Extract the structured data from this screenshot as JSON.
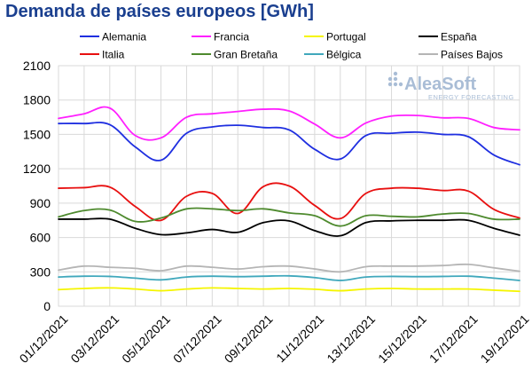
{
  "chart_data": {
    "type": "line",
    "title": "Demanda de países europeos [GWh]",
    "xlabel": "",
    "ylabel": "",
    "ylim": [
      0,
      2100
    ],
    "yticks": [
      0,
      300,
      600,
      900,
      1200,
      1500,
      1800,
      2100
    ],
    "x": [
      "01/12/2021",
      "02/12/2021",
      "03/12/2021",
      "04/12/2021",
      "05/12/2021",
      "06/12/2021",
      "07/12/2021",
      "08/12/2021",
      "09/12/2021",
      "10/12/2021",
      "11/12/2021",
      "12/12/2021",
      "13/12/2021",
      "14/12/2021",
      "15/12/2021",
      "16/12/2021",
      "17/12/2021",
      "18/12/2021",
      "19/12/2021"
    ],
    "xtick_labels": [
      "01/12/2021",
      "03/12/2021",
      "05/12/2021",
      "07/12/2021",
      "09/12/2021",
      "11/12/2021",
      "13/12/2021",
      "15/12/2021",
      "17/12/2021",
      "19/12/2021"
    ],
    "grid": true,
    "legend_position": "top",
    "series": [
      {
        "name": "Alemania",
        "color": "#1f2fe0",
        "values": [
          1595,
          1595,
          1585,
          1390,
          1275,
          1510,
          1565,
          1580,
          1560,
          1540,
          1370,
          1285,
          1490,
          1510,
          1520,
          1500,
          1480,
          1320,
          1235
        ]
      },
      {
        "name": "Francia",
        "color": "#ff1fff",
        "values": [
          1640,
          1680,
          1730,
          1490,
          1470,
          1650,
          1680,
          1700,
          1720,
          1705,
          1590,
          1470,
          1600,
          1660,
          1665,
          1645,
          1640,
          1560,
          1540
        ]
      },
      {
        "name": "Portugal",
        "color": "#f5f500",
        "values": [
          145,
          155,
          160,
          150,
          135,
          150,
          160,
          155,
          150,
          155,
          148,
          135,
          150,
          155,
          150,
          150,
          150,
          140,
          130
        ]
      },
      {
        "name": "España",
        "color": "#000000",
        "values": [
          760,
          760,
          760,
          680,
          625,
          640,
          670,
          645,
          730,
          745,
          660,
          615,
          730,
          745,
          750,
          750,
          750,
          680,
          620
        ]
      },
      {
        "name": "Italia",
        "color": "#e81010",
        "values": [
          1030,
          1035,
          1040,
          870,
          750,
          960,
          985,
          810,
          1045,
          1050,
          880,
          765,
          985,
          1030,
          1030,
          1010,
          1005,
          845,
          770
        ]
      },
      {
        "name": "Gran Bretaña",
        "color": "#4e8a2e",
        "values": [
          780,
          835,
          840,
          740,
          770,
          850,
          850,
          835,
          850,
          815,
          790,
          700,
          790,
          785,
          780,
          805,
          810,
          760,
          760
        ]
      },
      {
        "name": "Bélgica",
        "color": "#40a8bc",
        "values": [
          255,
          262,
          260,
          245,
          230,
          255,
          262,
          258,
          262,
          265,
          250,
          225,
          255,
          260,
          258,
          260,
          262,
          245,
          225
        ]
      },
      {
        "name": "Países Bajos",
        "color": "#b5b5b5",
        "values": [
          315,
          350,
          340,
          330,
          310,
          350,
          340,
          325,
          345,
          350,
          325,
          300,
          345,
          350,
          350,
          355,
          365,
          335,
          305
        ]
      }
    ]
  },
  "logo": {
    "name": "AleaSoft",
    "tagline": "ENERGY FORECASTING"
  },
  "colors": {
    "title": "#1a3f8f",
    "grid": "#d9d9d9",
    "logo": "#a9bdd6"
  }
}
